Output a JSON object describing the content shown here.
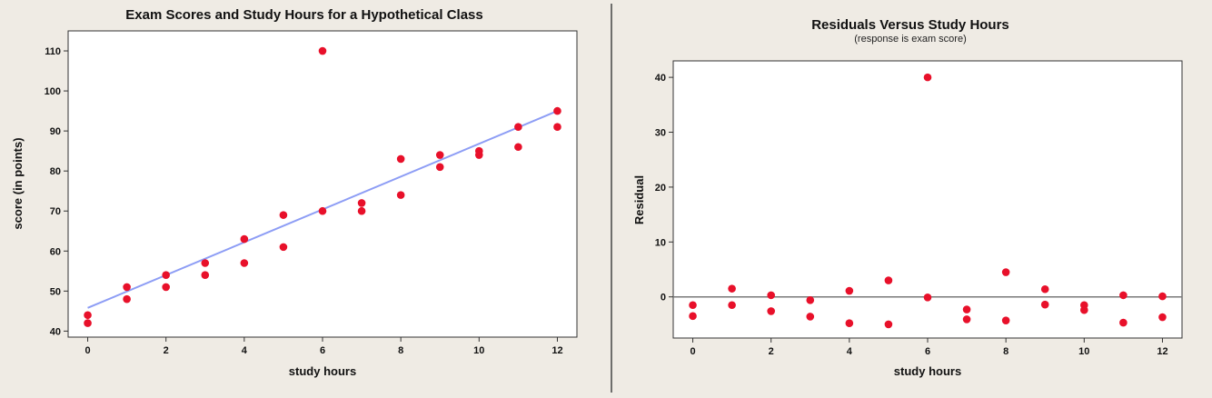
{
  "chart_data": [
    {
      "type": "scatter",
      "title": "Exam Scores and Study Hours for a Hypothetical Class",
      "subtitle": "",
      "xlabel": "study hours",
      "ylabel": "score (in points)",
      "xlim": [
        -0.5,
        12.5
      ],
      "ylim": [
        38.5,
        115
      ],
      "xticks": [
        0,
        2,
        4,
        6,
        8,
        10,
        12
      ],
      "yticks": [
        40,
        50,
        60,
        70,
        80,
        90,
        100,
        110
      ],
      "grid": false,
      "point_color": "#e8102a",
      "line_color": "#8d9df5",
      "series": [
        {
          "values": [
            [
              0,
              42
            ],
            [
              0,
              44
            ],
            [
              1,
              48
            ],
            [
              1,
              51
            ],
            [
              2,
              51
            ],
            [
              2,
              54
            ],
            [
              3,
              54
            ],
            [
              3,
              57
            ],
            [
              4,
              57
            ],
            [
              4,
              63
            ],
            [
              5,
              61
            ],
            [
              5,
              69
            ],
            [
              6,
              70
            ],
            [
              6,
              110
            ],
            [
              7,
              70
            ],
            [
              7,
              72
            ],
            [
              8,
              74
            ],
            [
              8,
              83
            ],
            [
              9,
              81
            ],
            [
              9,
              84
            ],
            [
              10,
              84
            ],
            [
              10,
              85
            ],
            [
              11,
              86
            ],
            [
              11,
              91
            ],
            [
              12,
              91
            ],
            [
              12,
              95
            ]
          ]
        }
      ],
      "fit_line": {
        "x": [
          0,
          12
        ],
        "y": [
          45.8,
          95
        ]
      }
    },
    {
      "type": "scatter",
      "title": "Residuals Versus Study Hours",
      "subtitle": "(response is exam score)",
      "xlabel": "study hours",
      "ylabel": "Residual",
      "xlim": [
        -0.5,
        12.5
      ],
      "ylim": [
        -7.5,
        43
      ],
      "xticks": [
        0,
        2,
        4,
        6,
        8,
        10,
        12
      ],
      "yticks": [
        0,
        10,
        20,
        30,
        40
      ],
      "grid": false,
      "point_color": "#e8102a",
      "line_color": "#7a7a7a",
      "series": [
        {
          "values": [
            [
              0,
              -1.5
            ],
            [
              0,
              -3.5
            ],
            [
              1,
              1.5
            ],
            [
              1,
              -1.5
            ],
            [
              2,
              0.3
            ],
            [
              2,
              -2.6
            ],
            [
              3,
              -0.6
            ],
            [
              3,
              -3.6
            ],
            [
              4,
              1.1
            ],
            [
              4,
              -4.8
            ],
            [
              5,
              3.0
            ],
            [
              5,
              -5.0
            ],
            [
              6,
              40.0
            ],
            [
              6,
              -0.1
            ],
            [
              7,
              -2.3
            ],
            [
              7,
              -4.1
            ],
            [
              8,
              4.5
            ],
            [
              8,
              -4.3
            ],
            [
              9,
              1.4
            ],
            [
              9,
              -1.4
            ],
            [
              10,
              -1.5
            ],
            [
              10,
              -2.4
            ],
            [
              11,
              0.3
            ],
            [
              11,
              -4.7
            ],
            [
              12,
              0.1
            ],
            [
              12,
              -3.7
            ]
          ]
        }
      ],
      "reference_line": 0
    }
  ]
}
